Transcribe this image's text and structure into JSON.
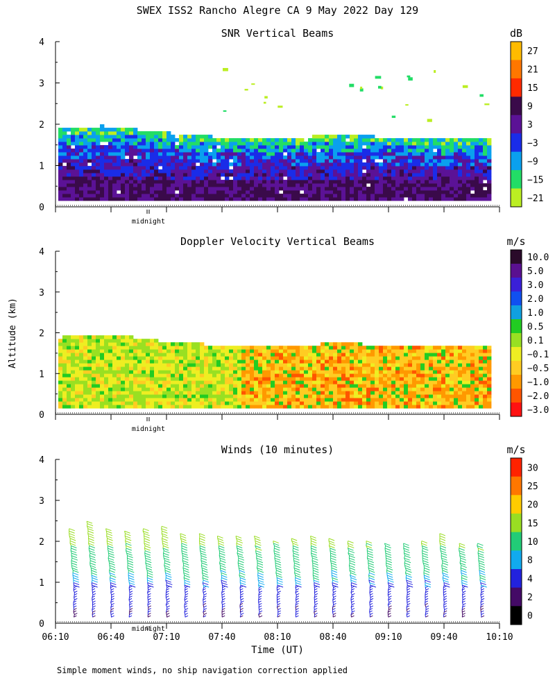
{
  "title": "SWEX ISS2 Rancho Alegre CA   9 May 2022 Day 129",
  "ylabel": "Altitude (km)",
  "xlabel": "Time (UT)",
  "footnote": "Simple moment winds, no ship navigation correction applied",
  "midnight_label": "midnight",
  "time_ticks": [
    "06:10",
    "06:40",
    "07:10",
    "07:40",
    "08:10",
    "08:40",
    "09:10",
    "09:40",
    "10:10"
  ],
  "chart_data": [
    {
      "type": "heatmap",
      "title": "SNR Vertical Beams",
      "units": "dB",
      "ylim": [
        0,
        4
      ],
      "yticks": [
        "0",
        "1",
        "2",
        "3",
        "4"
      ],
      "colorbar": {
        "labels": [
          "27",
          "21",
          "15",
          "9",
          "3",
          "−3",
          "−9",
          "−15",
          "−21"
        ],
        "colors": [
          "#ffbb00",
          "#ff7700",
          "#ff2a00",
          "#3a0a4a",
          "#5b1296",
          "#1a2ce8",
          "#0aa0ee",
          "#22dd66",
          "#bbee22"
        ]
      },
      "layer_top_km": [
        1.85,
        1.87,
        1.9,
        1.92,
        1.88,
        1.85,
        1.8,
        1.76,
        1.74,
        1.72,
        1.68,
        1.65,
        1.63,
        1.62,
        1.6,
        1.6,
        1.62,
        1.64,
        1.68,
        1.7,
        1.7,
        1.68,
        1.66,
        1.62,
        1.6,
        1.6,
        1.6,
        1.6,
        1.62,
        1.6,
        1.6
      ]
    },
    {
      "type": "heatmap",
      "title": "Doppler Velocity Vertical Beams",
      "units": "m/s",
      "ylim": [
        0,
        4
      ],
      "yticks": [
        "0",
        "1",
        "2",
        "3",
        "4"
      ],
      "colorbar": {
        "labels": [
          "10.0",
          "5.0",
          "3.0",
          "2.0",
          "1.0",
          "0.5",
          "0.1",
          "−0.1",
          "−0.5",
          "−1.0",
          "−2.0",
          "−3.0"
        ],
        "colors": [
          "#2a0a2a",
          "#5a1090",
          "#3a20d8",
          "#1050f0",
          "#10a0e0",
          "#22cc22",
          "#99e022",
          "#eeee22",
          "#ffcc22",
          "#ff9900",
          "#ff5500",
          "#ff1111"
        ]
      }
    },
    {
      "type": "wind_barbs",
      "title": "Winds (10 minutes)",
      "units": "m/s",
      "ylim": [
        0,
        4
      ],
      "yticks": [
        "0",
        "1",
        "2",
        "3",
        "4"
      ],
      "colorbar": {
        "labels": [
          "30",
          "25",
          "20",
          "15",
          "10",
          "8",
          "4",
          "2",
          "0"
        ],
        "colors": [
          "#ff2200",
          "#ff7700",
          "#ffcc00",
          "#99dd22",
          "#22cc77",
          "#11aaee",
          "#2222dd",
          "#440a66",
          "#000000"
        ]
      },
      "profile_times": [
        "06:20",
        "06:30",
        "06:40",
        "06:50",
        "07:00",
        "07:10",
        "07:20",
        "07:30",
        "07:40",
        "07:50",
        "08:00",
        "08:10",
        "08:20",
        "08:30",
        "08:40",
        "08:50",
        "09:00",
        "09:10",
        "09:20",
        "09:30",
        "09:40",
        "09:50",
        "10:00"
      ],
      "profile_top_km": [
        2.35,
        2.5,
        2.35,
        2.3,
        2.35,
        2.4,
        2.2,
        2.2,
        2.15,
        2.15,
        2.15,
        2.05,
        2.1,
        2.15,
        2.1,
        2.05,
        2.05,
        2.0,
        2.0,
        2.05,
        2.2,
        2.0,
        2.0
      ],
      "speed_by_altitude": [
        {
          "alt_km": 0.2,
          "speed_ms": 4
        },
        {
          "alt_km": 0.8,
          "speed_ms": 6
        },
        {
          "alt_km": 1.2,
          "speed_ms": 10
        },
        {
          "alt_km": 1.8,
          "speed_ms": 14
        },
        {
          "alt_km": 2.3,
          "speed_ms": 19
        }
      ]
    }
  ]
}
